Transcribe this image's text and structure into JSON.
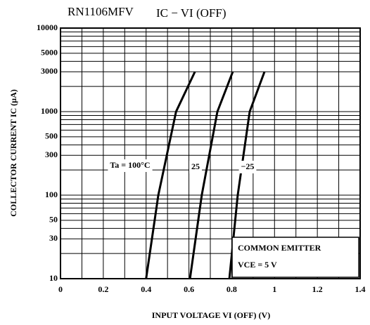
{
  "chart_data": {
    "type": "line",
    "title": "RN1106MFV",
    "subtitle": "IC − VI (OFF)",
    "x_label": "INPUT VOLTAGE  VI (OFF)  (V)",
    "y_label": "COLLECTOR CURRENT  IC  (µA)",
    "annotation": [
      "COMMON EMITTER",
      "VCE = 5 V"
    ],
    "log_y": true,
    "xlim": [
      0,
      1.4
    ],
    "ylim": [
      10,
      10000
    ],
    "xticks": [
      0,
      0.2,
      0.4,
      0.6,
      0.8,
      1,
      1.2,
      1.4
    ],
    "yticks": [
      10,
      30,
      50,
      100,
      300,
      500,
      1000,
      3000,
      5000,
      10000
    ],
    "xgrid": [
      0,
      0.1,
      0.2,
      0.3,
      0.4,
      0.5,
      0.6,
      0.7,
      0.8,
      0.9,
      1,
      1.1,
      1.2,
      1.3,
      1.4
    ],
    "ygrid": [
      10,
      20,
      30,
      40,
      50,
      60,
      70,
      80,
      90,
      100,
      200,
      300,
      400,
      500,
      600,
      700,
      800,
      900,
      1000,
      2000,
      3000,
      4000,
      5000,
      6000,
      7000,
      8000,
      9000,
      10000
    ],
    "series": [
      {
        "name": "Ta = 100°C",
        "color": "#000000",
        "x": [
          0.4,
          0.457,
          0.54,
          0.628
        ],
        "values": [
          10,
          100,
          1000,
          3000
        ]
      },
      {
        "name": "25",
        "color": "#000000",
        "x": [
          0.605,
          0.66,
          0.733,
          0.805
        ],
        "values": [
          10,
          100,
          1000,
          3000
        ]
      },
      {
        "name": "−25",
        "color": "#000000",
        "x": [
          0.789,
          0.828,
          0.884,
          0.953
        ],
        "values": [
          10,
          100,
          1000,
          3000
        ]
      }
    ]
  }
}
